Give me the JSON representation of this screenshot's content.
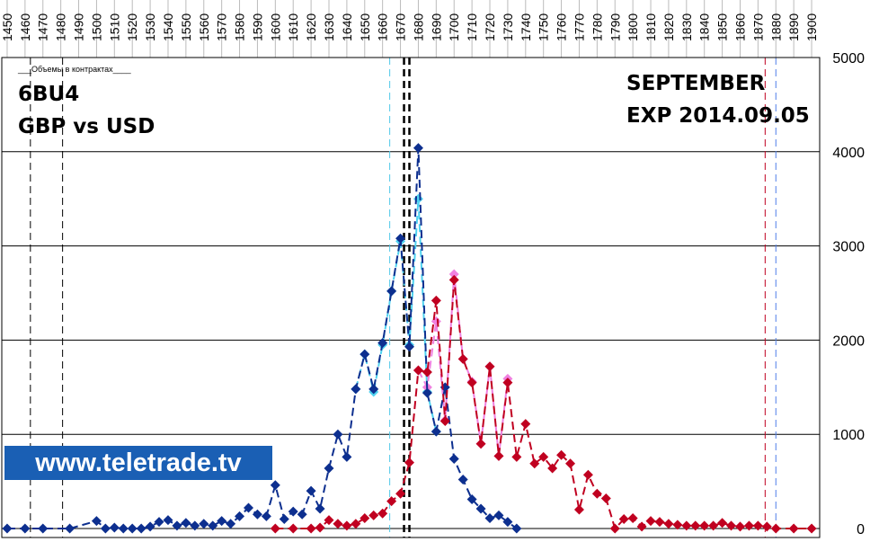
{
  "chart_data": {
    "type": "line",
    "subtitle": "___Объемы в контрактах____",
    "title_lines": [
      "6BU4",
      "GBP vs USD"
    ],
    "right_text": [
      "SEPTEMBER",
      "EXP 2014.09.05"
    ],
    "watermark": "www.teletrade.tv",
    "xlim": [
      1447,
      1904.5
    ],
    "xticks": [
      1450,
      1460,
      1470,
      1480,
      1490,
      1500,
      1510,
      1520,
      1530,
      1540,
      1550,
      1560,
      1570,
      1580,
      1590,
      1600,
      1610,
      1620,
      1630,
      1640,
      1650,
      1660,
      1670,
      1680,
      1690,
      1700,
      1710,
      1720,
      1730,
      1740,
      1750,
      1760,
      1770,
      1780,
      1790,
      1800,
      1810,
      1820,
      1830,
      1840,
      1850,
      1860,
      1870,
      1880,
      1890,
      1900
    ],
    "ylim": [
      -100,
      5000
    ],
    "yticks": [
      0,
      1000,
      2000,
      3000,
      4000,
      5000
    ],
    "grid": true,
    "vlines": [
      {
        "x": 1463,
        "color": "#000000",
        "width": 1
      },
      {
        "x": 1481,
        "color": "#000000",
        "width": 1
      },
      {
        "x": 1664,
        "color": "#4fc8e8",
        "width": 1
      },
      {
        "x": 1672,
        "color": "#000000",
        "width": 2.5
      },
      {
        "x": 1675,
        "color": "#000000",
        "width": 2.5
      },
      {
        "x": 1874,
        "color": "#c00020",
        "width": 1
      },
      {
        "x": 1880,
        "color": "#4f7fe8",
        "width": 1
      }
    ],
    "series": [
      {
        "color": "#4fd2f0",
        "x": [
          1645,
          1650,
          1655,
          1660,
          1665,
          1670,
          1675,
          1680,
          1685,
          1690
        ],
        "values": [
          1480,
          1850,
          1450,
          1950,
          2520,
          3050,
          1950,
          3500,
          1450,
          1030
        ]
      },
      {
        "color": "#f080e0",
        "x": [
          1680,
          1685,
          1690,
          1695,
          1700,
          1705,
          1710,
          1715,
          1720,
          1725,
          1730
        ],
        "values": [
          1680,
          1500,
          2200,
          1150,
          2700,
          1800,
          1560,
          900,
          1720,
          770,
          1590
        ]
      },
      {
        "color": "#0d2f8f",
        "x": [
          1450,
          1460,
          1470,
          1485,
          1500,
          1505,
          1510,
          1515,
          1520,
          1525,
          1530,
          1535,
          1540,
          1545,
          1550,
          1555,
          1560,
          1565,
          1570,
          1575,
          1580,
          1585,
          1590,
          1595,
          1600,
          1605,
          1610,
          1615,
          1620,
          1625,
          1630,
          1635,
          1640,
          1645,
          1650,
          1655,
          1660,
          1665,
          1670,
          1675,
          1680,
          1685,
          1690,
          1695,
          1700,
          1705,
          1710,
          1715,
          1720,
          1725,
          1730,
          1735
        ],
        "values": [
          0,
          0,
          0,
          0,
          80,
          0,
          10,
          0,
          0,
          0,
          20,
          70,
          90,
          30,
          60,
          30,
          50,
          30,
          80,
          50,
          130,
          220,
          150,
          130,
          460,
          100,
          180,
          150,
          400,
          210,
          640,
          1000,
          760,
          1480,
          1850,
          1480,
          1970,
          2520,
          3080,
          1930,
          4040,
          1440,
          1030,
          1500,
          740,
          520,
          310,
          210,
          110,
          140,
          70,
          0
        ]
      },
      {
        "color": "#c00020",
        "x": [
          1600,
          1610,
          1620,
          1625,
          1630,
          1635,
          1640,
          1645,
          1650,
          1655,
          1660,
          1665,
          1670,
          1675,
          1680,
          1685,
          1690,
          1695,
          1700,
          1705,
          1710,
          1715,
          1720,
          1725,
          1730,
          1735,
          1740,
          1745,
          1750,
          1755,
          1760,
          1765,
          1770,
          1775,
          1780,
          1785,
          1790,
          1795,
          1800,
          1805,
          1810,
          1815,
          1820,
          1825,
          1830,
          1835,
          1840,
          1845,
          1850,
          1855,
          1860,
          1865,
          1870,
          1875,
          1880,
          1890,
          1900
        ],
        "values": [
          0,
          0,
          0,
          10,
          90,
          50,
          30,
          50,
          110,
          140,
          160,
          290,
          370,
          700,
          1680,
          1660,
          2420,
          1140,
          2640,
          1800,
          1550,
          900,
          1720,
          770,
          1550,
          760,
          1110,
          690,
          760,
          640,
          780,
          690,
          200,
          570,
          370,
          320,
          0,
          100,
          110,
          20,
          80,
          70,
          50,
          40,
          30,
          30,
          30,
          30,
          60,
          30,
          20,
          30,
          30,
          20,
          0,
          0,
          0
        ]
      }
    ]
  }
}
